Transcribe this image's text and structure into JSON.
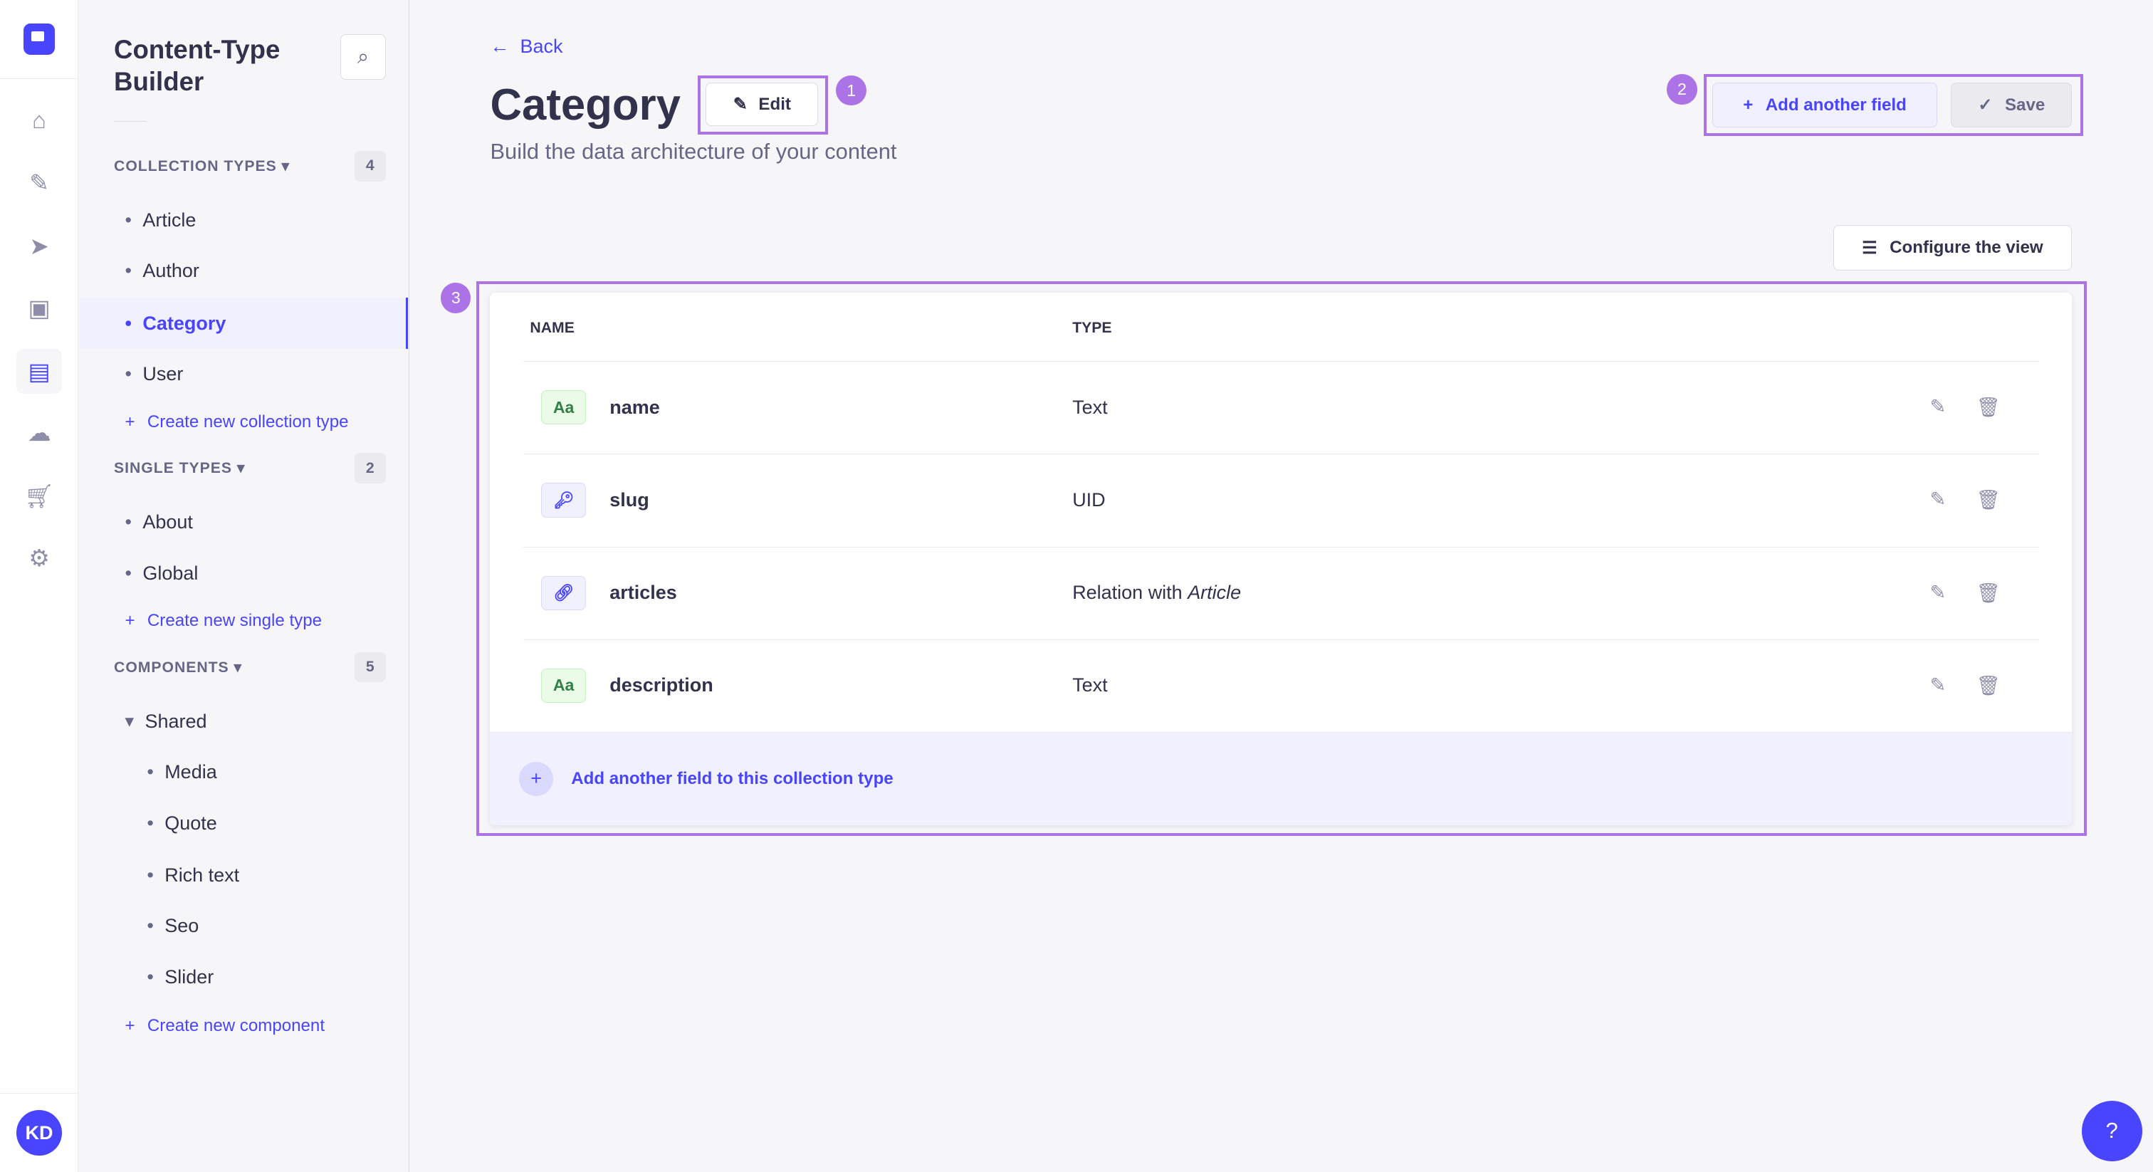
{
  "nav": {
    "items": [
      "home-icon",
      "feather-icon",
      "paper-plane-icon",
      "images-icon",
      "layout-icon",
      "cloud-icon",
      "cart-icon",
      "cog-icon"
    ],
    "active": 4,
    "avatar": "KD"
  },
  "sidebar": {
    "title": "Content-Type Builder",
    "collection": {
      "label": "COLLECTION TYPES",
      "count": "4",
      "items": [
        "Article",
        "Author",
        "Category",
        "User"
      ],
      "create": "Create new collection type"
    },
    "single": {
      "label": "SINGLE TYPES",
      "count": "2",
      "items": [
        "About",
        "Global"
      ],
      "create": "Create new single type"
    },
    "components": {
      "label": "COMPONENTS",
      "count": "5",
      "group": "Shared",
      "items": [
        "Media",
        "Quote",
        "Rich text",
        "Seo",
        "Slider"
      ],
      "create": "Create new component"
    }
  },
  "header": {
    "back": "Back",
    "title": "Category",
    "edit": "Edit",
    "subtitle": "Build the data architecture of your content",
    "add_field": "Add another field",
    "save": "Save",
    "configure": "Configure the view"
  },
  "annotations": [
    "1",
    "2",
    "3"
  ],
  "table": {
    "columns": [
      "NAME",
      "TYPE"
    ],
    "rows": [
      {
        "icon": "Aa",
        "kind": "text",
        "name": "name",
        "type": "Text",
        "target": ""
      },
      {
        "icon": "key",
        "kind": "uid",
        "name": "slug",
        "type": "UID",
        "target": ""
      },
      {
        "icon": "link",
        "kind": "rel",
        "name": "articles",
        "type": "Relation with",
        "target": "Article"
      },
      {
        "icon": "Aa",
        "kind": "text",
        "name": "description",
        "type": "Text",
        "target": ""
      }
    ],
    "footer": "Add another field to this collection type"
  },
  "colors": {
    "primary": "#4945ff",
    "highlight": "#ac73e6"
  }
}
